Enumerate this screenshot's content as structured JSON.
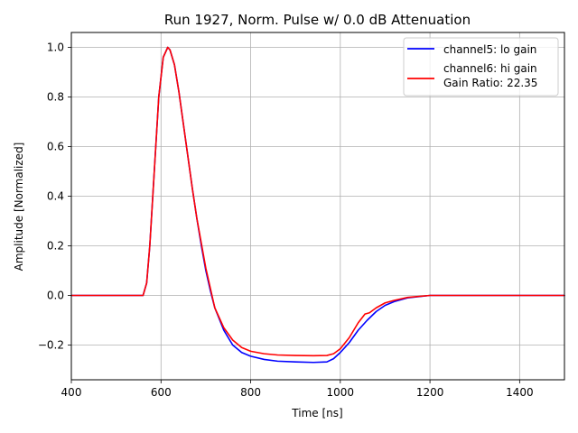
{
  "chart_data": {
    "type": "line",
    "title": "Run 1927, Norm. Pulse w/ 0.0 dB Attenuation",
    "xlabel": "Time [ns]",
    "ylabel": "Amplitude [Normalized]",
    "xlim": [
      400,
      1500
    ],
    "ylim": [
      -0.34,
      1.06
    ],
    "xticks": [
      400,
      600,
      800,
      1000,
      1200,
      1400
    ],
    "xtick_labels": [
      "400",
      "600",
      "800",
      "1000",
      "1200",
      "1400"
    ],
    "yticks": [
      -0.2,
      0.0,
      0.2,
      0.4,
      0.6,
      0.8,
      1.0
    ],
    "ytick_labels": [
      "−0.2",
      "0.0",
      "0.2",
      "0.4",
      "0.6",
      "0.8",
      "1.0"
    ],
    "grid": true,
    "legend_position": "top-right",
    "legend_note": "Gain Ratio: 22.35",
    "series": [
      {
        "name": "channel5: lo gain",
        "color": "#0000ff",
        "x": [
          400,
          500,
          560,
          568,
          575,
          585,
          595,
          605,
          615,
          620,
          630,
          640,
          650,
          660,
          670,
          680,
          690,
          700,
          710,
          720,
          740,
          760,
          780,
          800,
          830,
          860,
          900,
          940,
          970,
          985,
          1000,
          1020,
          1040,
          1060,
          1080,
          1100,
          1120,
          1150,
          1200,
          1300,
          1400,
          1500
        ],
        "y": [
          0.0,
          0.0,
          0.0,
          0.05,
          0.2,
          0.5,
          0.8,
          0.96,
          1.0,
          0.99,
          0.93,
          0.82,
          0.69,
          0.56,
          0.43,
          0.31,
          0.2,
          0.1,
          0.02,
          -0.05,
          -0.14,
          -0.2,
          -0.23,
          -0.245,
          -0.258,
          -0.265,
          -0.268,
          -0.27,
          -0.268,
          -0.255,
          -0.23,
          -0.19,
          -0.14,
          -0.1,
          -0.065,
          -0.04,
          -0.025,
          -0.01,
          0.0,
          0.0,
          0.0,
          0.0
        ]
      },
      {
        "name": "channel6: hi gain",
        "color": "#ff0000",
        "x": [
          400,
          500,
          560,
          568,
          575,
          585,
          595,
          605,
          615,
          620,
          630,
          640,
          650,
          660,
          670,
          680,
          690,
          700,
          710,
          720,
          740,
          760,
          780,
          800,
          830,
          860,
          900,
          940,
          970,
          985,
          1000,
          1020,
          1040,
          1055,
          1065,
          1080,
          1100,
          1120,
          1150,
          1200,
          1300,
          1400,
          1500
        ],
        "y": [
          0.0,
          0.0,
          0.0,
          0.05,
          0.2,
          0.5,
          0.8,
          0.96,
          1.0,
          0.99,
          0.93,
          0.82,
          0.69,
          0.56,
          0.43,
          0.31,
          0.21,
          0.11,
          0.03,
          -0.05,
          -0.13,
          -0.18,
          -0.21,
          -0.225,
          -0.235,
          -0.24,
          -0.242,
          -0.243,
          -0.242,
          -0.235,
          -0.215,
          -0.17,
          -0.11,
          -0.075,
          -0.07,
          -0.05,
          -0.03,
          -0.02,
          -0.008,
          0.0,
          0.0,
          0.0,
          0.0
        ]
      }
    ]
  }
}
